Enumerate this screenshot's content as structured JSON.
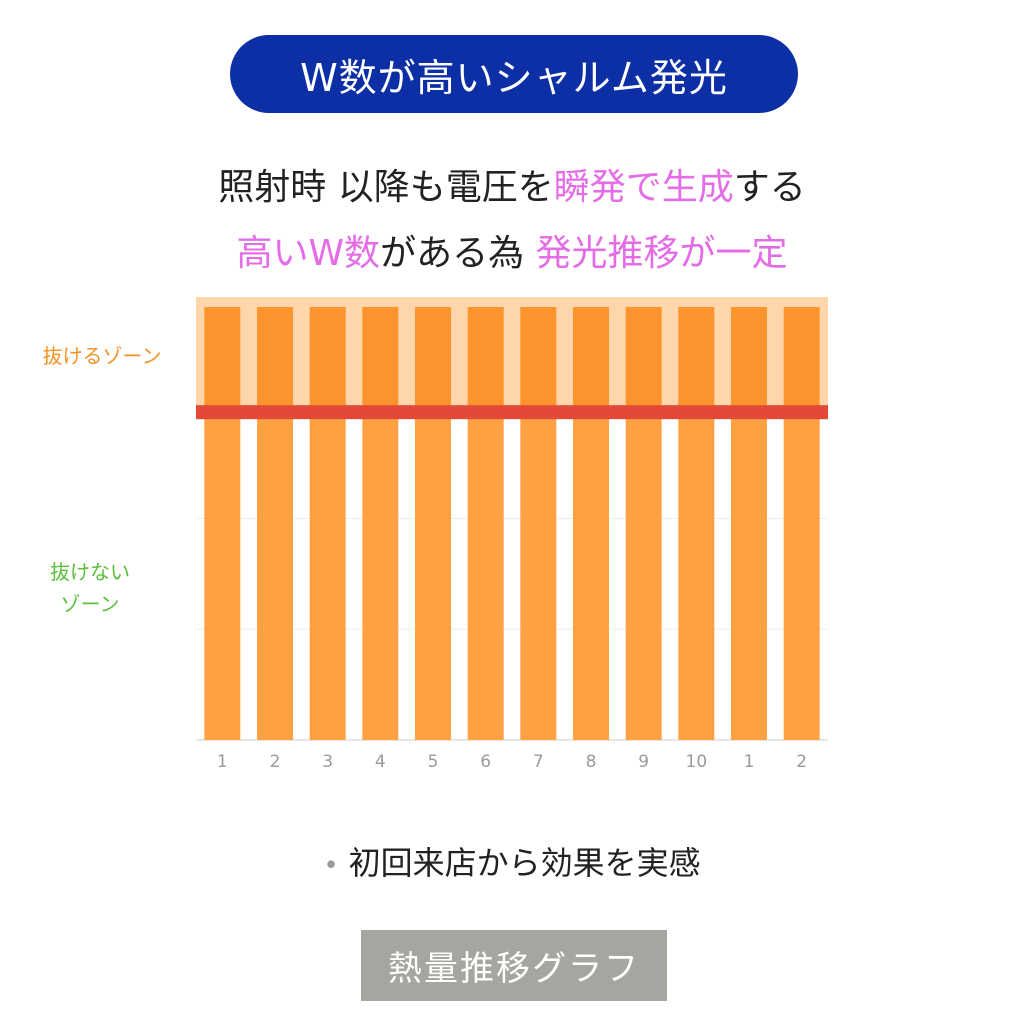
{
  "title": "W数が高いシャルム発光",
  "subtitle": {
    "line1": [
      {
        "text": "照射時 以降も電圧を",
        "highlight": false
      },
      {
        "text": "瞬発で生成",
        "highlight": true
      },
      {
        "text": "する",
        "highlight": false
      }
    ],
    "line2": [
      {
        "text": "高いW数",
        "highlight": true
      },
      {
        "text": "がある為 ",
        "highlight": false
      },
      {
        "text": "発光推移が一定",
        "highlight": true
      }
    ]
  },
  "zones": {
    "pass": "抜けるゾーン",
    "no_pass_line1": "抜けない",
    "no_pass_line2": "ゾーン"
  },
  "bullet": "初回来店から効果を実感",
  "footer_label": "熱量推移グラフ",
  "colors": {
    "title_bg": "#0d2fa6",
    "highlight": "#e46de7",
    "bar": "#ffa142",
    "bar_top": "#fb942c",
    "band": "#ffd5ab",
    "threshold": "#e24a37",
    "pass_label": "#f39225",
    "no_pass_label": "#5cbf3a",
    "footer_bg": "#a6a6a0"
  },
  "chart_data": {
    "type": "bar",
    "categories": [
      "1",
      "2",
      "3",
      "4",
      "5",
      "6",
      "7",
      "8",
      "9",
      "10",
      "1",
      "2"
    ],
    "values": [
      1,
      1,
      1,
      1,
      1,
      1,
      1,
      1,
      1,
      1,
      1,
      1
    ],
    "threshold": 0.74,
    "ylim": [
      0,
      1
    ],
    "grid": true,
    "legend": "none",
    "title": "",
    "xlabel": "",
    "ylabel": ""
  }
}
